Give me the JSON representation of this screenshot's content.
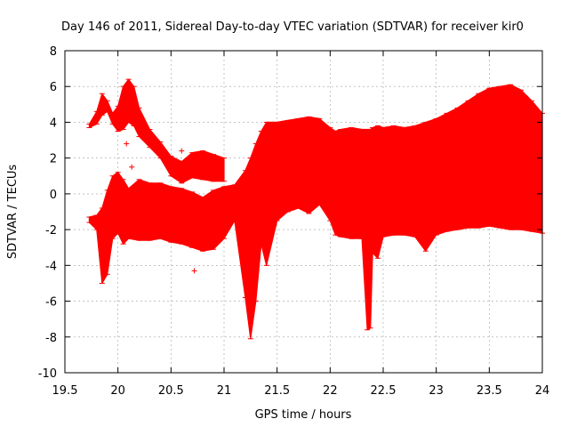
{
  "chart_data": {
    "type": "area",
    "title": "Day 146 of 2011, Sidereal Day-to-day VTEC variation (SDTVAR) for receiver kir0",
    "xlabel": "GPS time / hours",
    "ylabel": "SDTVAR / TECUs",
    "xlim": [
      19.5,
      24
    ],
    "ylim": [
      -10,
      8
    ],
    "xticks": [
      19.5,
      20,
      20.5,
      21,
      21.5,
      22,
      22.5,
      23,
      23.5,
      24
    ],
    "xtick_labels": [
      "19.5",
      "20",
      "20.5",
      "21",
      "21.5",
      "22",
      "22.5",
      "23",
      "23.5",
      "24"
    ],
    "yticks": [
      -10,
      -8,
      -6,
      -4,
      -2,
      0,
      2,
      4,
      6,
      8
    ],
    "ytick_labels": [
      "-10",
      "-8",
      "-6",
      "-4",
      "-2",
      "0",
      "2",
      "4",
      "6",
      "8"
    ],
    "grid": true,
    "series_color": "#ff0000",
    "series": [
      {
        "name": "upper band",
        "x": [
          19.73,
          19.8,
          19.85,
          19.9,
          19.95,
          20.0,
          20.05,
          20.1,
          20.15,
          20.2,
          20.3,
          20.4,
          20.5,
          20.6,
          20.7,
          20.8,
          20.9,
          21.0
        ],
        "upper": [
          3.9,
          4.6,
          5.6,
          5.2,
          4.5,
          4.9,
          6.0,
          6.4,
          6.0,
          4.8,
          3.6,
          2.9,
          2.1,
          1.8,
          2.3,
          2.4,
          2.2,
          2.0
        ],
        "lower": [
          3.7,
          3.9,
          4.4,
          4.6,
          3.9,
          3.5,
          3.6,
          4.0,
          3.8,
          3.2,
          2.6,
          2.0,
          1.0,
          0.6,
          0.9,
          0.8,
          0.7,
          0.7
        ]
      },
      {
        "name": "main band",
        "x": [
          19.73,
          19.8,
          19.85,
          19.9,
          19.95,
          20.0,
          20.05,
          20.1,
          20.2,
          20.3,
          20.4,
          20.5,
          20.6,
          20.7,
          20.8,
          20.9,
          21.0,
          21.1,
          21.2,
          21.25,
          21.3,
          21.35,
          21.4,
          21.5,
          21.6,
          21.7,
          21.8,
          21.9,
          22.0,
          22.05,
          22.1,
          22.2,
          22.3,
          22.35,
          22.38,
          22.4,
          22.45,
          22.5,
          22.6,
          22.7,
          22.8,
          22.9,
          23.0,
          23.1,
          23.2,
          23.3,
          23.4,
          23.5,
          23.6,
          23.7,
          23.8,
          23.9,
          24.0
        ],
        "upper": [
          -1.3,
          -1.2,
          -0.8,
          0.2,
          1.0,
          1.2,
          0.8,
          0.3,
          0.8,
          0.6,
          0.6,
          0.4,
          0.3,
          0.1,
          -0.2,
          0.2,
          0.4,
          0.5,
          1.3,
          2.0,
          2.8,
          3.5,
          4.0,
          4.0,
          4.1,
          4.2,
          4.3,
          4.2,
          3.7,
          3.5,
          3.6,
          3.7,
          3.6,
          3.6,
          3.6,
          3.7,
          3.8,
          3.7,
          3.8,
          3.7,
          3.8,
          4.0,
          4.2,
          4.5,
          4.8,
          5.2,
          5.6,
          5.9,
          6.0,
          6.1,
          5.8,
          5.2,
          4.5
        ],
        "lower": [
          -1.6,
          -2.0,
          -5.0,
          -4.5,
          -2.5,
          -2.2,
          -2.8,
          -2.5,
          -2.6,
          -2.6,
          -2.5,
          -2.7,
          -2.8,
          -3.0,
          -3.2,
          -3.1,
          -2.5,
          -1.5,
          -5.8,
          -8.1,
          -6.0,
          -2.8,
          -4.0,
          -1.5,
          -1.0,
          -0.8,
          -1.1,
          -0.6,
          -1.5,
          -2.3,
          -2.4,
          -2.5,
          -2.5,
          -7.6,
          -7.5,
          -3.3,
          -3.6,
          -2.4,
          -2.3,
          -2.3,
          -2.4,
          -3.2,
          -2.3,
          -2.1,
          -2.0,
          -1.9,
          -1.9,
          -1.8,
          -1.9,
          -2.0,
          -2.0,
          -2.1,
          -2.2
        ]
      }
    ],
    "outlier_points": [
      {
        "x": 20.08,
        "y": 2.8
      },
      {
        "x": 20.13,
        "y": 1.5
      },
      {
        "x": 20.72,
        "y": -4.3
      },
      {
        "x": 20.6,
        "y": 2.4
      }
    ]
  }
}
